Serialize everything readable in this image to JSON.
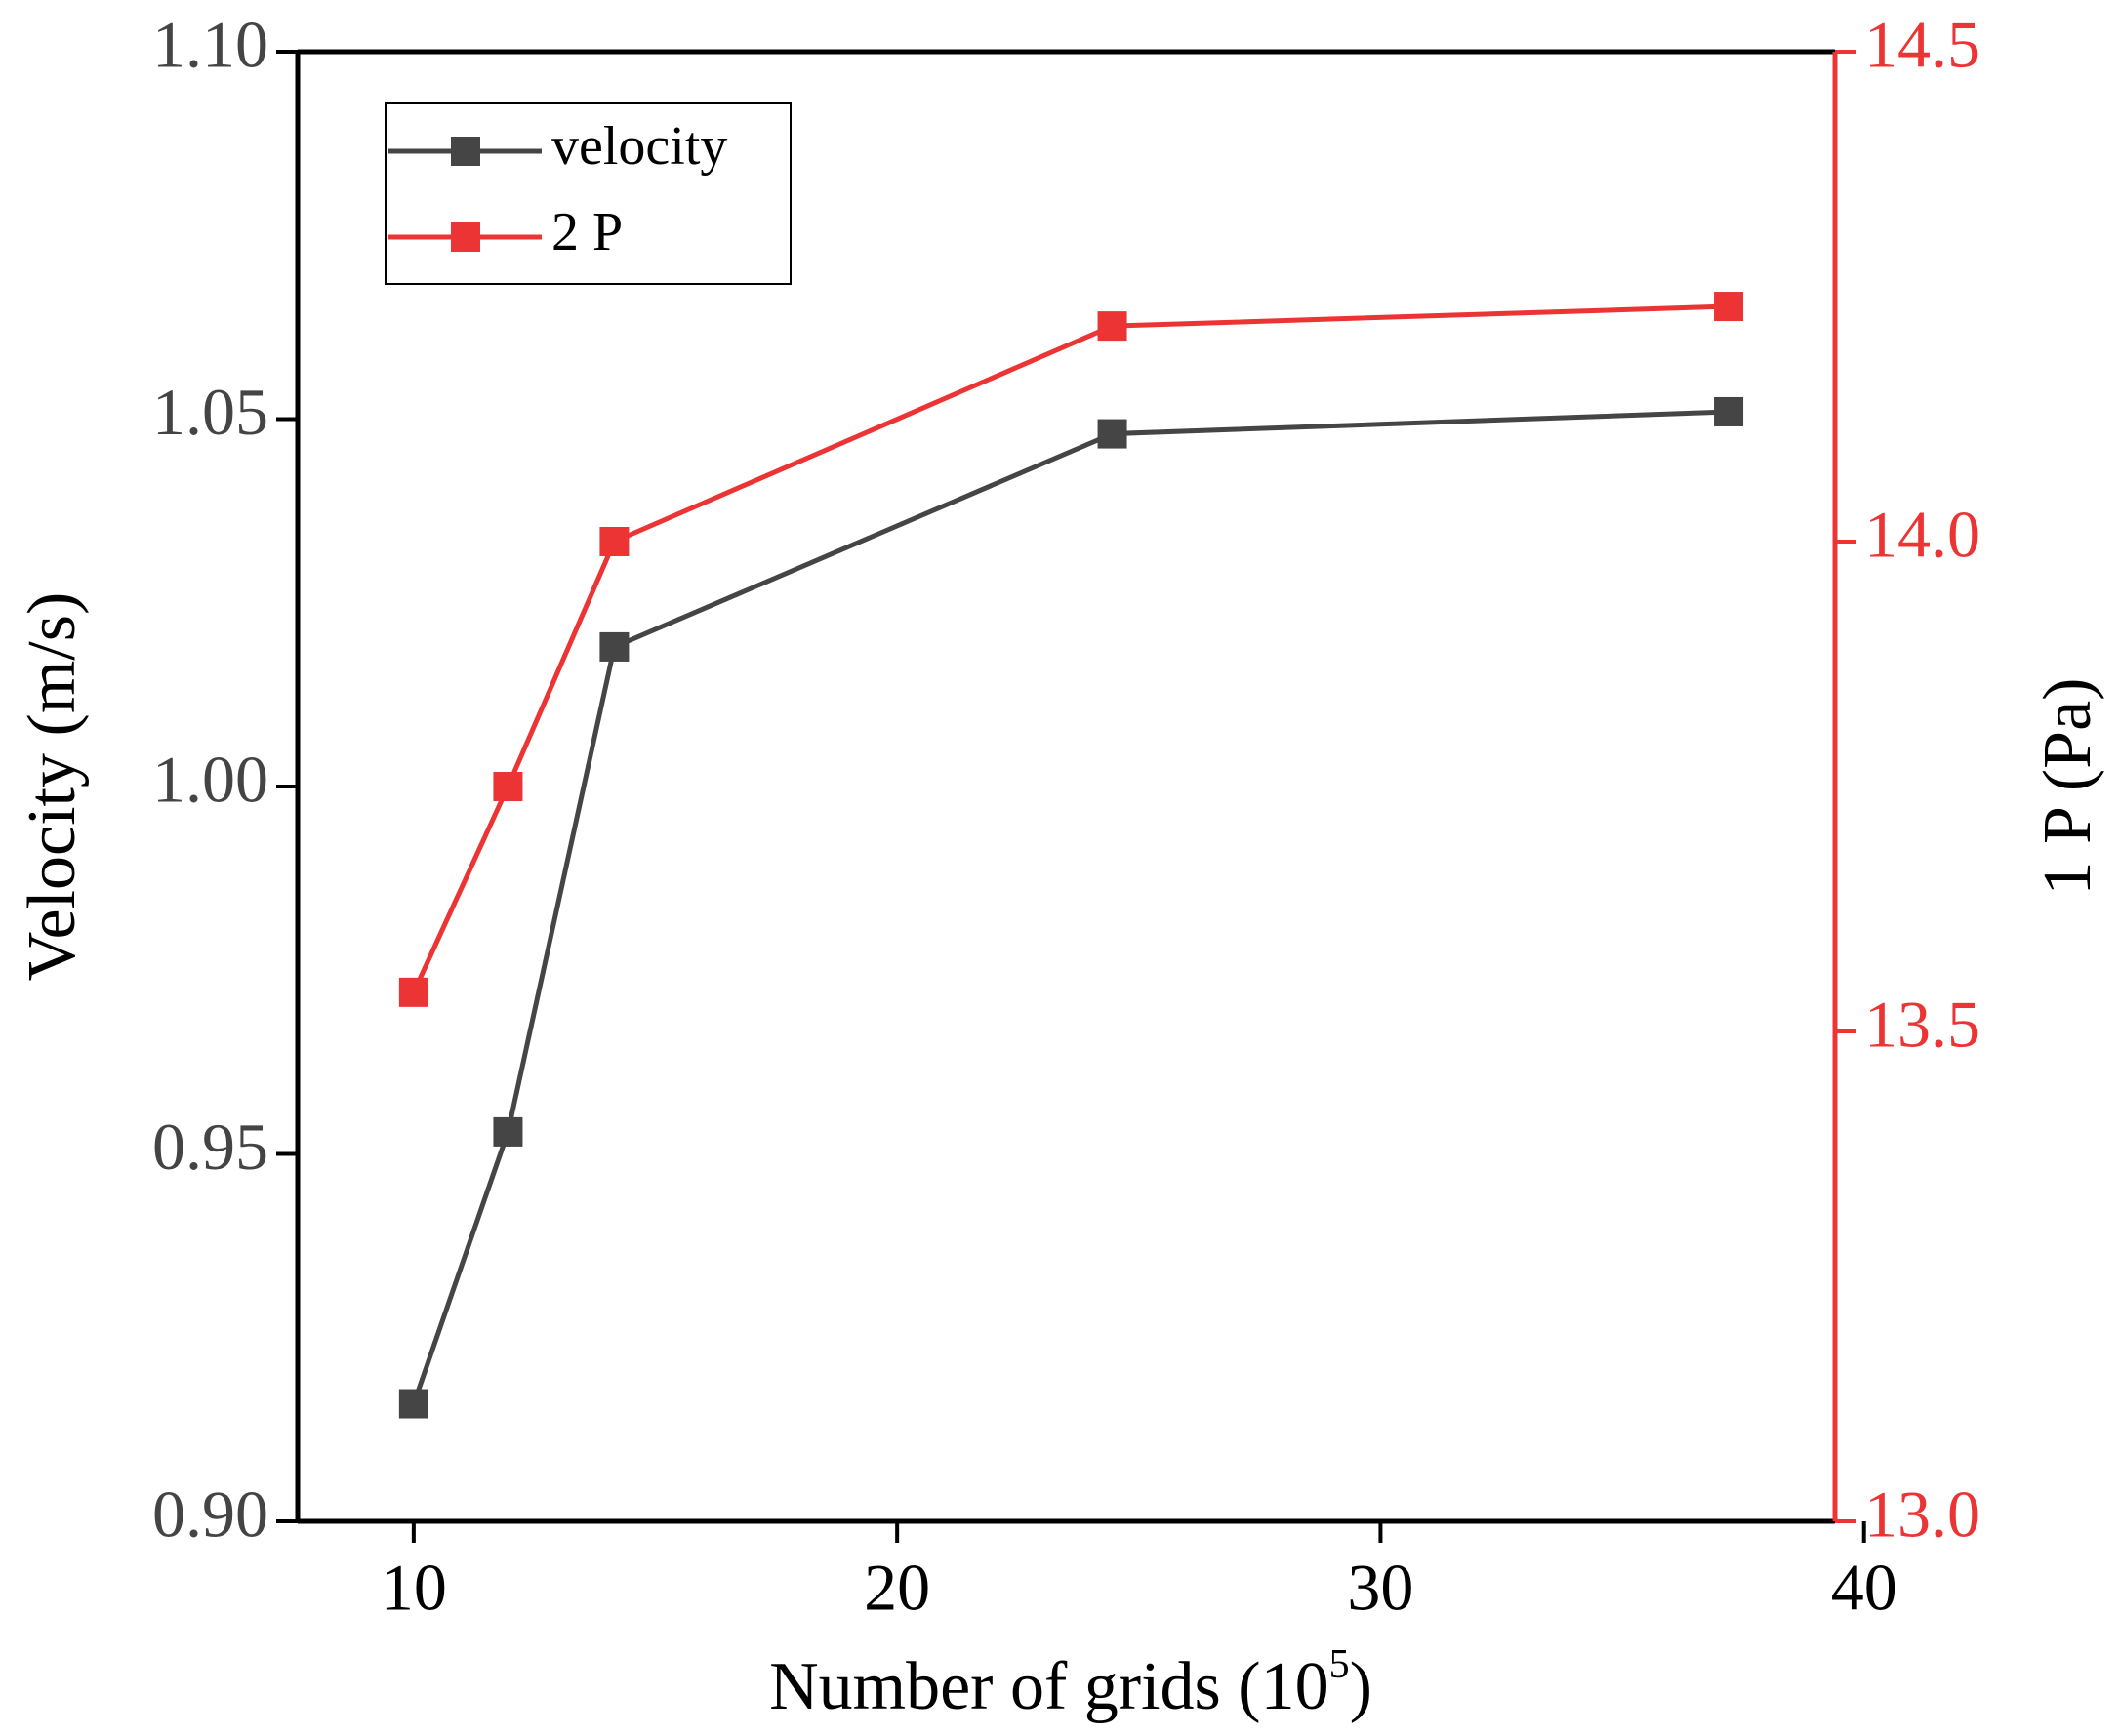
{
  "chart_data": {
    "type": "line",
    "x_label": {
      "text": "Number of grids (10",
      "sup": "5",
      "close": ")"
    },
    "y_label": "Velocity (m/s)",
    "y2_label": "1 P (Pa)",
    "x": [
      10,
      11.95,
      14.15,
      24.45,
      37.2
    ],
    "series": [
      {
        "name": "velocity",
        "color": "#454545",
        "values": [
          0.916,
          0.953,
          1.019,
          1.048,
          1.051
        ]
      },
      {
        "name": "2 P",
        "color": "#ec3434",
        "axis": "y2",
        "values": [
          13.54,
          13.75,
          14.0,
          14.22,
          14.24
        ]
      }
    ],
    "xlim": [
      7.6,
      39.4
    ],
    "xticks": [
      10,
      20,
      30,
      40
    ],
    "ylim": [
      0.9,
      1.1
    ],
    "yticks": [
      {
        "value": 0.9,
        "label": "0.90"
      },
      {
        "value": 0.95,
        "label": "0.95"
      },
      {
        "value": 1.0,
        "label": "1.00"
      },
      {
        "value": 1.05,
        "label": "1.05"
      },
      {
        "value": 1.1,
        "label": "1.10"
      }
    ],
    "y2lim": [
      13.0,
      14.5
    ],
    "y2ticks": [
      {
        "value": 13.0,
        "label": "13.0"
      },
      {
        "value": 13.5,
        "label": "13.5"
      },
      {
        "value": 14.0,
        "label": "14.0"
      },
      {
        "value": 14.5,
        "label": "14.5"
      }
    ],
    "legend": "top-left"
  }
}
